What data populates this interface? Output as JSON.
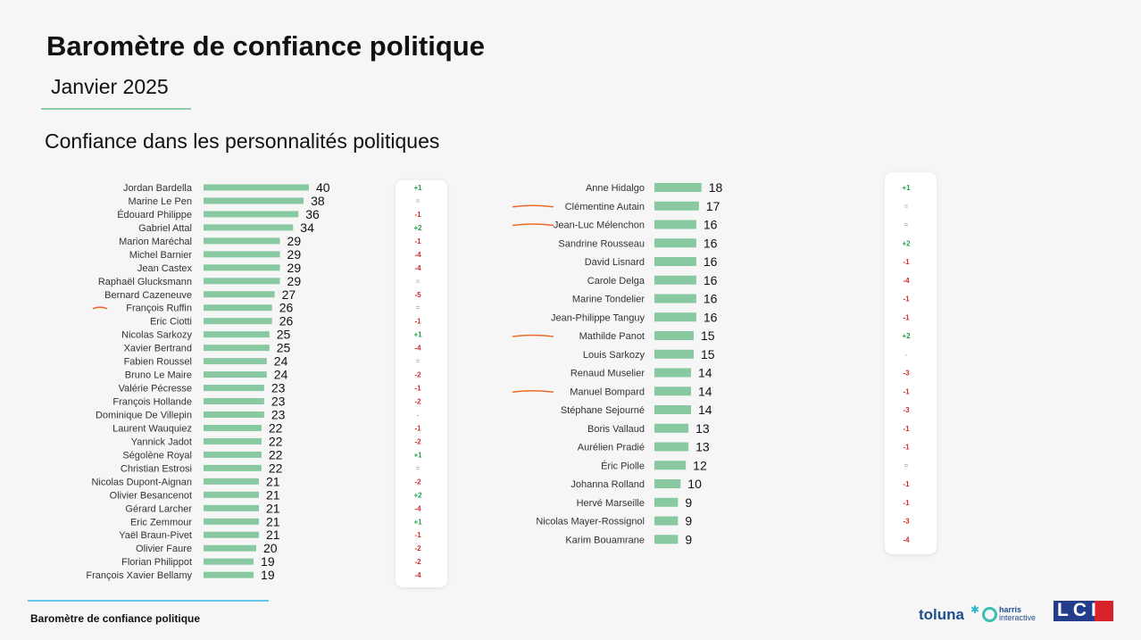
{
  "header": {
    "title": "Baromètre de confiance politique",
    "subtitle": "Janvier 2025",
    "section_title": "Confiance dans les personnalités politiques"
  },
  "footer": {
    "text": "Baromètre de confiance politique",
    "logo_toluna": "toluna",
    "logo_harris_line1": "harris",
    "logo_harris_line2": "interactive",
    "logo_lci": "LCI"
  },
  "colors": {
    "bar": "#88c9a1",
    "positive": "#1e9e4a",
    "negative": "#d42a2a",
    "neutral": "#b5b5b5",
    "underline": "#ee6a2a"
  },
  "chart_data": [
    {
      "type": "bar",
      "orientation": "horizontal",
      "categories": [
        "Jordan Bardella",
        "Marine Le Pen",
        "Édouard Philippe",
        "Gabriel Attal",
        "Marion Maréchal",
        "Michel Barnier",
        "Jean Castex",
        "Raphaël Glucksmann",
        "Bernard Cazeneuve",
        "François Ruffin",
        "Eric Ciotti",
        "Nicolas Sarkozy",
        "Xavier Bertrand",
        "Fabien Roussel",
        "Bruno Le Maire",
        "Valérie Pécresse",
        "François Hollande",
        "Dominique De Villepin",
        "Laurent Wauquiez",
        "Yannick Jadot",
        "Ségolène Royal",
        "Christian Estrosi",
        "Nicolas Dupont-Aignan",
        "Olivier Besancenot",
        "Gérard Larcher",
        "Eric Zemmour",
        "Yaël Braun-Pivet",
        "Olivier Faure",
        "Florian Philippot",
        "François Xavier Bellamy"
      ],
      "values": [
        40,
        38,
        36,
        34,
        29,
        29,
        29,
        29,
        27,
        26,
        26,
        25,
        25,
        24,
        24,
        23,
        23,
        23,
        22,
        22,
        22,
        22,
        21,
        21,
        21,
        21,
        21,
        20,
        19,
        19
      ],
      "evolution": [
        "+1",
        "=",
        "-1",
        "+2",
        "-1",
        "-4",
        "-4",
        "=",
        "-5",
        "=",
        "-1",
        "+1",
        "-4",
        "=",
        "-2",
        "-1",
        "-2",
        "-",
        "-1",
        "-2",
        "+1",
        "=",
        "-2",
        "+2",
        "-4",
        "+1",
        "-1",
        "-2",
        "-2",
        "-4"
      ],
      "highlighted": [
        "François Ruffin"
      ]
    },
    {
      "type": "bar",
      "orientation": "horizontal",
      "categories": [
        "Anne Hidalgo",
        "Clémentine Autain",
        "Jean-Luc Mélenchon",
        "Sandrine Rousseau",
        "David Lisnard",
        "Carole Delga",
        "Marine Tondelier",
        "Jean-Philippe Tanguy",
        "Mathilde Panot",
        "Louis Sarkozy",
        "Renaud Muselier",
        "Manuel Bompard",
        "Stéphane Sejourné",
        "Boris Vallaud",
        "Aurélien Pradié",
        "Éric Piolle",
        "Johanna Rolland",
        "Hervé Marseille",
        "Nicolas Mayer-Rossignol",
        "Karim Bouamrane"
      ],
      "values": [
        18,
        17,
        16,
        16,
        16,
        16,
        16,
        16,
        15,
        15,
        14,
        14,
        14,
        13,
        13,
        12,
        10,
        9,
        9,
        9
      ],
      "evolution": [
        "+1",
        "=",
        "=",
        "+2",
        "-1",
        "-4",
        "-1",
        "-1",
        "+2",
        "-",
        "-3",
        "-1",
        "-3",
        "-1",
        "-1",
        "=",
        "-1",
        "-1",
        "-3",
        "-4"
      ],
      "highlighted": [
        "Clémentine Autain",
        "Jean-Luc Mélenchon",
        "Mathilde Panot",
        "Manuel Bompard"
      ]
    }
  ]
}
